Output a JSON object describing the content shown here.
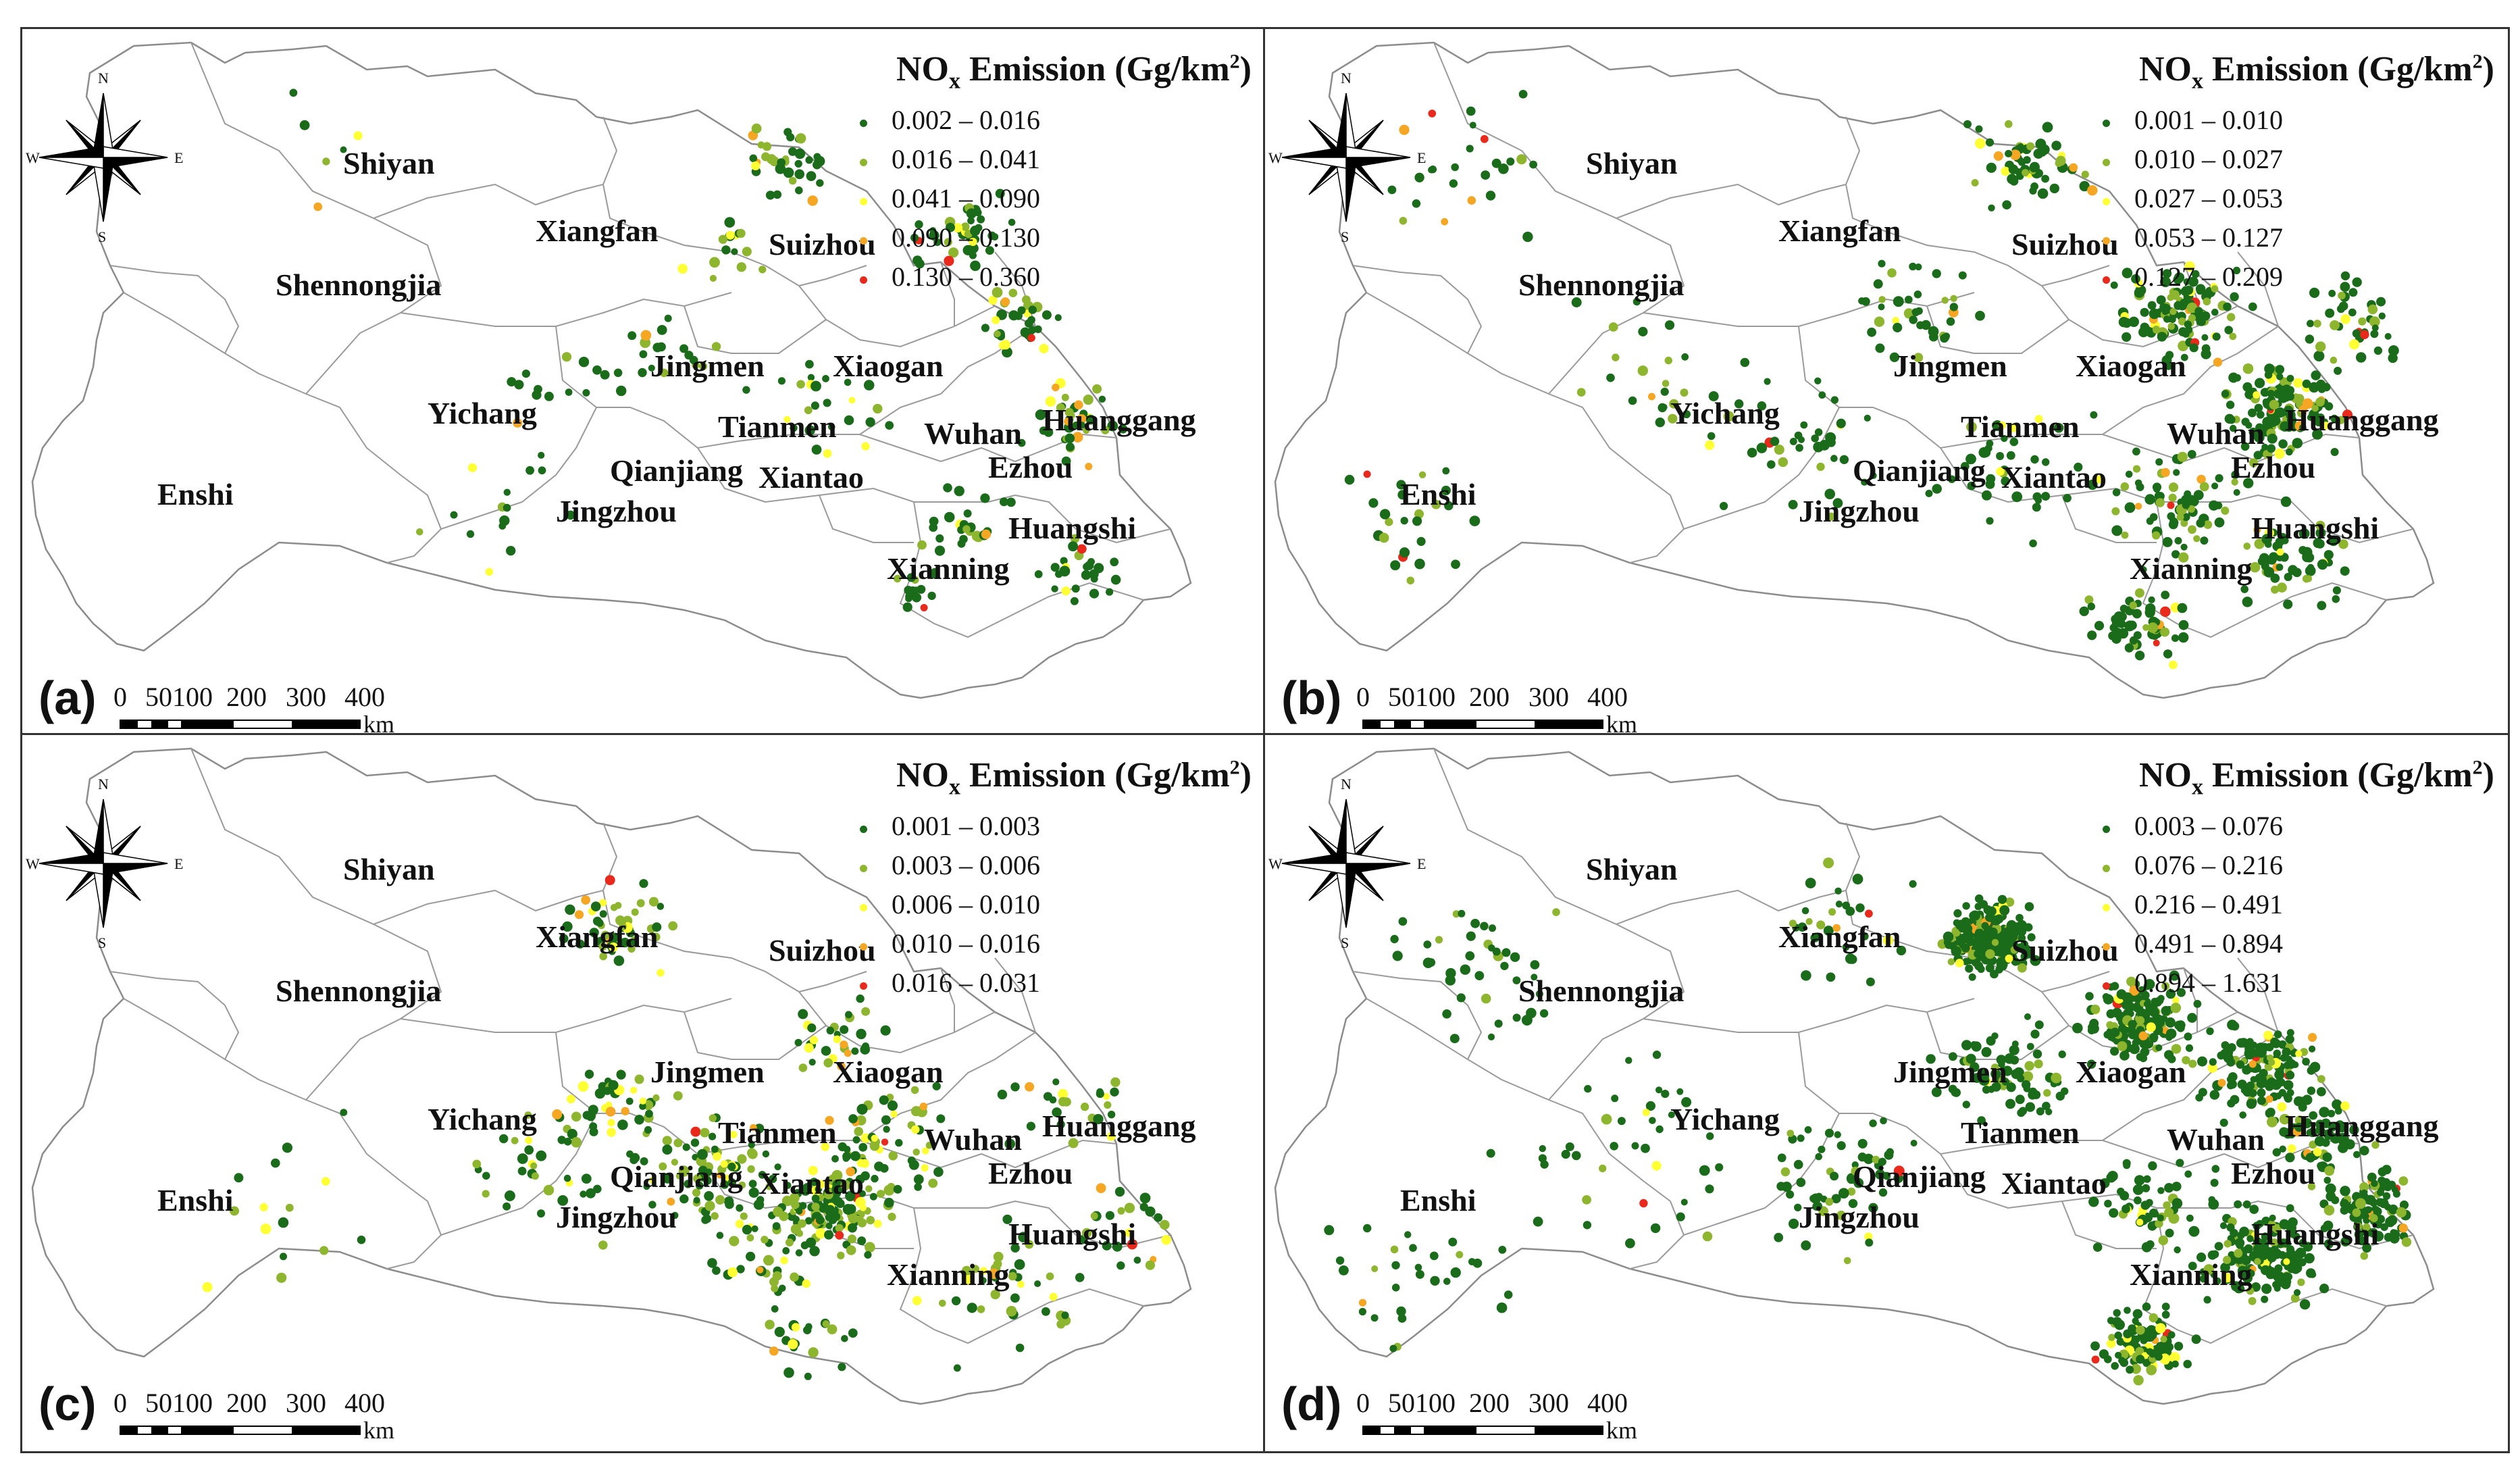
{
  "legend_title": {
    "main": "NO",
    "sub": "x",
    "rest": " Emission (Gg/km",
    "sup": "2",
    "end": ")"
  },
  "color_classes": [
    "#1a6b1a",
    "#8db52e",
    "#ffff33",
    "#f5a623",
    "#e8291b"
  ],
  "compass": {
    "n": "N",
    "s": "S",
    "e": "E",
    "w": "W"
  },
  "scale_bar": {
    "ticks": [
      "0",
      "50",
      "100",
      "200",
      "300",
      "400"
    ],
    "unit": "km"
  },
  "cities": [
    "Shiyan",
    "Xiangfan",
    "Suizhou",
    "Shennongjia",
    "Jingmen",
    "Xiaogan",
    "Yichang",
    "Tianmen",
    "Wuhan",
    "Huanggang",
    "Enshi",
    "Qianjiang",
    "Xiantao",
    "Ezhou",
    "Jingzhou",
    "Huangshi",
    "Xianning"
  ],
  "panels": [
    {
      "letter": "(a)",
      "ranges": [
        "0.002 – 0.016",
        "0.016 – 0.041",
        "0.041 – 0.090",
        "0.090 – 0.130",
        "0.130 – 0.360"
      ]
    },
    {
      "letter": "(b)",
      "ranges": [
        "0.001 – 0.010",
        "0.010 – 0.027",
        "0.027 – 0.053",
        "0.053 – 0.127",
        "0.127 – 0.209"
      ]
    },
    {
      "letter": "(c)",
      "ranges": [
        "0.001 – 0.003",
        "0.003 – 0.006",
        "0.006 – 0.010",
        "0.010 – 0.016",
        "0.016 – 0.031"
      ]
    },
    {
      "letter": "(d)",
      "ranges": [
        "0.003 – 0.076",
        "0.076 – 0.216",
        "0.216 – 0.491",
        "0.491 – 0.894",
        "0.894 – 1.631"
      ]
    }
  ]
}
